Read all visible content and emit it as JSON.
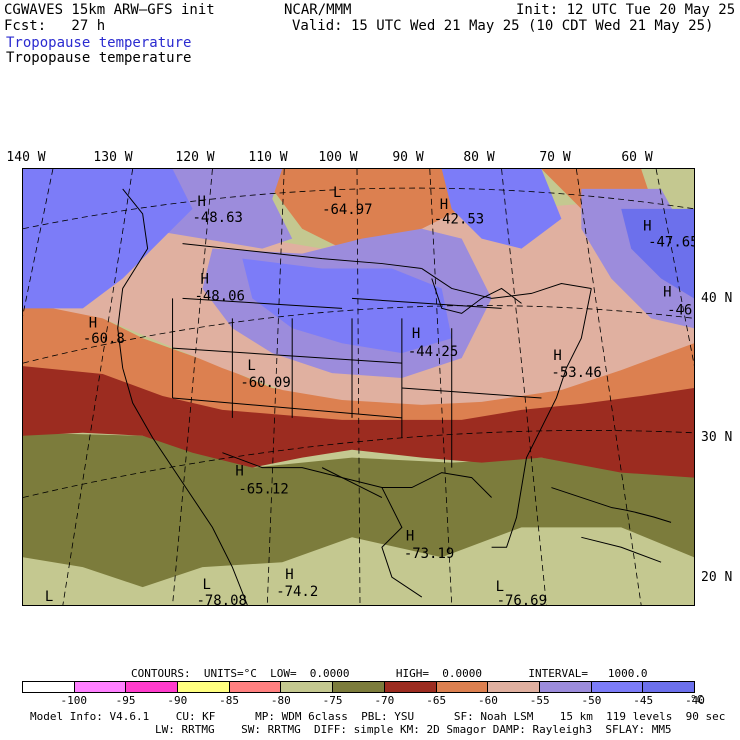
{
  "header": {
    "model": "CGWAVES 15km ARW–GFS init",
    "fcst": "Fcst:   27 h",
    "org": "NCAR/MMM",
    "init": "Init: 12 UTC Tue 20 May 25",
    "valid": "Valid: 15 UTC Wed 21 May 25 (10 CDT Wed 21 May 25)",
    "field_title": "Tropopause temperature",
    "field_subtitle": "Tropopause temperature"
  },
  "axes": {
    "lon_labels": [
      "140 W",
      "130 W",
      "120 W",
      "110 W",
      "100 W",
      "90 W",
      "80 W",
      "70 W",
      "60 W"
    ],
    "lat_labels": [
      "40 N",
      "30 N",
      "20 N"
    ]
  },
  "map_labels": [
    {
      "letter": "H",
      "value": "-48.63"
    },
    {
      "letter": "L",
      "value": "-64.97"
    },
    {
      "letter": "H",
      "value": "-42.53"
    },
    {
      "letter": "H",
      "value": "-47.65"
    },
    {
      "letter": "H",
      "value": "-48.06"
    },
    {
      "letter": "H",
      "value": "-60.8"
    },
    {
      "letter": "H",
      "value": "-46"
    },
    {
      "letter": "H",
      "value": "-44.25"
    },
    {
      "letter": "L",
      "value": "-60.09"
    },
    {
      "letter": "H",
      "value": "-53.46"
    },
    {
      "letter": "H",
      "value": "-65.12"
    },
    {
      "letter": "H",
      "value": "-73.19"
    },
    {
      "letter": "H",
      "value": "-74.2"
    },
    {
      "letter": "L",
      "value": "-78.08"
    },
    {
      "letter": "L",
      "value": "-76.69"
    },
    {
      "letter": "L",
      "value": ""
    }
  ],
  "contours": {
    "text": "CONTOURS:  UNITS=°C  LOW=  0.0000       HIGH=  0.0000       INTERVAL=   1000.0"
  },
  "colorbar": {
    "colors": [
      "#ffffff",
      "#ff80ff",
      "#ff3ccc",
      "#ffff80",
      "#ff8080",
      "#c4c890",
      "#7c7c3c",
      "#9c2c20",
      "#dc8050",
      "#e0b0a0",
      "#9c8cdc",
      "#7c7cf8",
      "#6c70ec"
    ],
    "labels": [
      "-100",
      "-95",
      "-90",
      "-85",
      "-80",
      "-75",
      "-70",
      "-65",
      "-60",
      "-55",
      "-50",
      "-45",
      "-40"
    ],
    "unit": "°C"
  },
  "footer": {
    "line1": "Model Info: V4.6.1    CU: KF      MP: WDM 6class  PBL: YSU      SF: Noah LSM    15 km  119 levels  90 sec",
    "line2": "LW: RRTMG    SW: RRTMG  DIFF: simple KM: 2D Smagor DAMP: Rayleigh3  SFLAY: MM5"
  }
}
